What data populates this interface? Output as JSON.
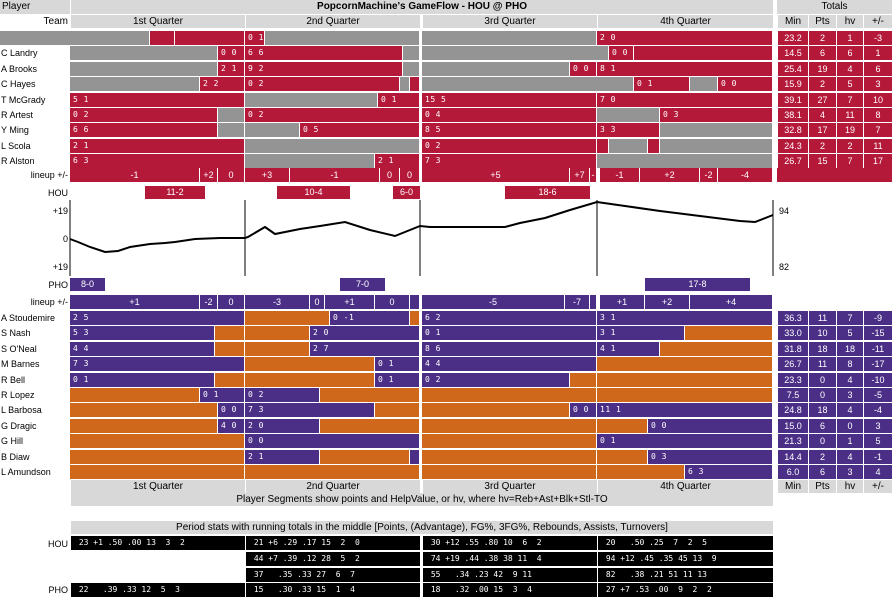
{
  "header": {
    "player_label": "Player",
    "title": "PopcornMachine's GameFlow - HOU @ PHO",
    "totals_label": "Totals",
    "team_label": "Team",
    "quarters": [
      "1st Quarter",
      "2nd Quarter",
      "3rd Quarter",
      "4th Quarter"
    ],
    "cols": [
      "Min",
      "Pts",
      "hv",
      "+/-"
    ]
  },
  "colors": {
    "hou": "#b5193a",
    "pho": "#4b2f86",
    "phoBench": "#d0681b",
    "gray": "#949494",
    "header": "#d8d8d8"
  },
  "hou": {
    "team": "HOU",
    "players": [
      {
        "name": "B Barry",
        "totals": [
          "23.2",
          "2",
          "1",
          "-3"
        ],
        "segs": [
          [
            0,
            150,
            "gray",
            ""
          ],
          [
            150,
            175,
            "hou",
            ""
          ],
          [
            175,
            245,
            "hou",
            ""
          ],
          [
            245,
            265,
            "hou",
            "0 1"
          ],
          [
            265,
            420,
            "gray",
            ""
          ],
          [
            422,
            597,
            "gray",
            ""
          ],
          [
            597,
            773,
            "hou",
            "2 0"
          ]
        ]
      },
      {
        "name": "C Landry",
        "totals": [
          "14.5",
          "6",
          "6",
          "1"
        ],
        "segs": [
          [
            70,
            218,
            "gray",
            ""
          ],
          [
            218,
            245,
            "hou",
            "0 0"
          ],
          [
            245,
            403,
            "hou",
            "6 6"
          ],
          [
            403,
            420,
            "gray",
            ""
          ],
          [
            422,
            609,
            "gray",
            ""
          ],
          [
            609,
            634,
            "hou",
            "0 0"
          ],
          [
            634,
            773,
            "hou",
            ""
          ]
        ]
      },
      {
        "name": "A Brooks",
        "totals": [
          "25.4",
          "19",
          "4",
          "6"
        ],
        "segs": [
          [
            70,
            218,
            "gray",
            ""
          ],
          [
            218,
            245,
            "hou",
            "2 1"
          ],
          [
            245,
            403,
            "hou",
            "9 2"
          ],
          [
            403,
            420,
            "gray",
            ""
          ],
          [
            422,
            570,
            "gray",
            ""
          ],
          [
            570,
            597,
            "hou",
            "0 0"
          ],
          [
            597,
            773,
            "hou",
            "8 1"
          ]
        ]
      },
      {
        "name": "C Hayes",
        "totals": [
          "15.9",
          "2",
          "5",
          "3"
        ],
        "segs": [
          [
            70,
            200,
            "gray",
            ""
          ],
          [
            200,
            245,
            "hou",
            "2 2"
          ],
          [
            245,
            400,
            "hou",
            "0 2"
          ],
          [
            400,
            410,
            "gray",
            ""
          ],
          [
            410,
            420,
            "hou",
            ""
          ],
          [
            422,
            634,
            "gray",
            ""
          ],
          [
            634,
            690,
            "hou",
            "0 1"
          ],
          [
            690,
            718,
            "gray",
            ""
          ],
          [
            718,
            773,
            "hou",
            "0 0"
          ]
        ]
      },
      {
        "name": "T McGrady",
        "totals": [
          "39.1",
          "27",
          "7",
          "10"
        ],
        "segs": [
          [
            70,
            245,
            "hou",
            "5 1"
          ],
          [
            245,
            378,
            "gray",
            ""
          ],
          [
            378,
            420,
            "hou",
            "0 1"
          ],
          [
            422,
            597,
            "hou",
            "15 5"
          ],
          [
            597,
            773,
            "hou",
            "7 0"
          ]
        ]
      },
      {
        "name": "R Artest",
        "totals": [
          "38.1",
          "4",
          "11",
          "8"
        ],
        "segs": [
          [
            70,
            218,
            "hou",
            "0 2"
          ],
          [
            218,
            245,
            "gray",
            ""
          ],
          [
            245,
            420,
            "hou",
            "0 2"
          ],
          [
            422,
            597,
            "hou",
            "0 4"
          ],
          [
            597,
            660,
            "gray",
            ""
          ],
          [
            660,
            773,
            "hou",
            "0 3"
          ]
        ]
      },
      {
        "name": "Y Ming",
        "totals": [
          "32.8",
          "17",
          "19",
          "7"
        ],
        "segs": [
          [
            70,
            218,
            "hou",
            "6 6"
          ],
          [
            218,
            245,
            "gray",
            ""
          ],
          [
            245,
            300,
            "gray",
            ""
          ],
          [
            300,
            420,
            "hou",
            "0 5"
          ],
          [
            422,
            597,
            "hou",
            "8 5"
          ],
          [
            597,
            660,
            "hou",
            "3 3"
          ],
          [
            660,
            773,
            "gray",
            ""
          ]
        ]
      },
      {
        "name": "L Scola",
        "totals": [
          "24.3",
          "2",
          "2",
          "11"
        ],
        "segs": [
          [
            70,
            245,
            "hou",
            "2 1"
          ],
          [
            245,
            420,
            "gray",
            ""
          ],
          [
            422,
            597,
            "hou",
            "0 2"
          ],
          [
            597,
            609,
            "hou",
            ""
          ],
          [
            609,
            648,
            "gray",
            ""
          ],
          [
            648,
            660,
            "hou",
            ""
          ],
          [
            660,
            773,
            "gray",
            ""
          ]
        ]
      },
      {
        "name": "R Alston",
        "totals": [
          "26.7",
          "15",
          "7",
          "17"
        ],
        "segs": [
          [
            70,
            245,
            "hou",
            "6 3"
          ],
          [
            245,
            375,
            "gray",
            ""
          ],
          [
            375,
            420,
            "hou",
            "2 1"
          ],
          [
            422,
            597,
            "hou",
            "7 3"
          ],
          [
            597,
            773,
            "gray",
            ""
          ]
        ]
      }
    ],
    "lineup_label": "lineup +/-",
    "lineup": [
      [
        70,
        200,
        "-1"
      ],
      [
        200,
        218,
        "+2"
      ],
      [
        218,
        245,
        "0"
      ],
      [
        245,
        290,
        "+3"
      ],
      [
        290,
        380,
        "-1"
      ],
      [
        380,
        400,
        "0"
      ],
      [
        400,
        420,
        "0"
      ],
      [
        422,
        570,
        "+5"
      ],
      [
        570,
        590,
        "+7"
      ],
      [
        590,
        597,
        "-"
      ],
      [
        600,
        640,
        "-1"
      ],
      [
        640,
        700,
        "+2"
      ],
      [
        700,
        718,
        "-2"
      ],
      [
        718,
        773,
        "-4"
      ]
    ],
    "periods": [
      [
        145,
        205,
        "11-2"
      ],
      [
        277,
        350,
        "10-4"
      ],
      [
        393,
        420,
        "6-0"
      ],
      [
        505,
        590,
        "18-6"
      ]
    ]
  },
  "flow": {
    "top_label": "+19",
    "mid_label": "0",
    "bot_label": "+19",
    "right_top": "94",
    "right_bottom": "82"
  },
  "pho": {
    "team": "PHO",
    "periods": [
      [
        70,
        105,
        "8-0"
      ],
      [
        340,
        385,
        "7-0"
      ],
      [
        645,
        750,
        "17-8"
      ]
    ],
    "lineup_label": "lineup +/-",
    "lineup": [
      [
        70,
        200,
        "+1"
      ],
      [
        200,
        218,
        "-2"
      ],
      [
        218,
        245,
        "0"
      ],
      [
        245,
        310,
        "-3"
      ],
      [
        310,
        325,
        "0"
      ],
      [
        325,
        375,
        "+1"
      ],
      [
        375,
        410,
        "0"
      ],
      [
        410,
        420,
        ""
      ],
      [
        422,
        565,
        "-5"
      ],
      [
        565,
        590,
        "-7"
      ],
      [
        590,
        597,
        ""
      ],
      [
        600,
        645,
        "+1"
      ],
      [
        645,
        690,
        "+2"
      ],
      [
        690,
        773,
        "+4"
      ]
    ],
    "players": [
      {
        "name": "A Stoudemire",
        "totals": [
          "36.3",
          "11",
          "7",
          "-9"
        ],
        "segs": [
          [
            70,
            245,
            "pho",
            "2 5"
          ],
          [
            245,
            330,
            "phoBench",
            ""
          ],
          [
            330,
            410,
            "pho",
            "0 -1"
          ],
          [
            410,
            420,
            "phoBench",
            ""
          ],
          [
            422,
            597,
            "pho",
            "6 2"
          ],
          [
            597,
            773,
            "pho",
            "3 1"
          ]
        ]
      },
      {
        "name": "S Nash",
        "totals": [
          "33.0",
          "10",
          "5",
          "-15"
        ],
        "segs": [
          [
            70,
            215,
            "pho",
            "5 3"
          ],
          [
            215,
            245,
            "phoBench",
            ""
          ],
          [
            245,
            310,
            "phoBench",
            ""
          ],
          [
            310,
            420,
            "pho",
            "2 0"
          ],
          [
            422,
            597,
            "pho",
            "0 1"
          ],
          [
            597,
            685,
            "pho",
            "3 1"
          ],
          [
            685,
            773,
            "phoBench",
            ""
          ]
        ]
      },
      {
        "name": "S O'Neal",
        "totals": [
          "31.8",
          "18",
          "18",
          "-11"
        ],
        "segs": [
          [
            70,
            215,
            "pho",
            "4 4"
          ],
          [
            215,
            245,
            "phoBench",
            ""
          ],
          [
            245,
            310,
            "phoBench",
            ""
          ],
          [
            310,
            420,
            "pho",
            "2 7"
          ],
          [
            422,
            597,
            "pho",
            "8 6"
          ],
          [
            597,
            660,
            "pho",
            "4 1"
          ],
          [
            660,
            773,
            "phoBench",
            ""
          ]
        ]
      },
      {
        "name": "M Barnes",
        "totals": [
          "26.7",
          "11",
          "8",
          "-17"
        ],
        "segs": [
          [
            70,
            245,
            "pho",
            "7 3"
          ],
          [
            245,
            375,
            "phoBench",
            ""
          ],
          [
            375,
            420,
            "pho",
            "0 1"
          ],
          [
            422,
            597,
            "pho",
            "4 4"
          ],
          [
            597,
            773,
            "phoBench",
            ""
          ]
        ]
      },
      {
        "name": "R Bell",
        "totals": [
          "23.3",
          "0",
          "4",
          "-10"
        ],
        "segs": [
          [
            70,
            215,
            "pho",
            "0 1"
          ],
          [
            215,
            245,
            "phoBench",
            ""
          ],
          [
            245,
            375,
            "phoBench",
            ""
          ],
          [
            375,
            420,
            "pho",
            "0 1"
          ],
          [
            422,
            570,
            "pho",
            "0 2"
          ],
          [
            570,
            597,
            "phoBench",
            ""
          ],
          [
            597,
            773,
            "phoBench",
            ""
          ]
        ]
      },
      {
        "name": "R Lopez",
        "totals": [
          "7.5",
          "0",
          "3",
          "-5"
        ],
        "segs": [
          [
            70,
            200,
            "phoBench",
            ""
          ],
          [
            200,
            245,
            "pho",
            "0 1"
          ],
          [
            245,
            320,
            "pho",
            "0 2"
          ],
          [
            320,
            420,
            "phoBench",
            ""
          ],
          [
            422,
            597,
            "phoBench",
            ""
          ],
          [
            597,
            773,
            "phoBench",
            ""
          ]
        ]
      },
      {
        "name": "L Barbosa",
        "totals": [
          "24.8",
          "18",
          "4",
          "-4"
        ],
        "segs": [
          [
            70,
            218,
            "phoBench",
            ""
          ],
          [
            218,
            245,
            "pho",
            "0 0"
          ],
          [
            245,
            375,
            "pho",
            "7 3"
          ],
          [
            375,
            420,
            "phoBench",
            ""
          ],
          [
            422,
            570,
            "phoBench",
            ""
          ],
          [
            570,
            597,
            "pho",
            "0 0"
          ],
          [
            597,
            773,
            "pho",
            "11 1"
          ]
        ]
      },
      {
        "name": "G Dragic",
        "totals": [
          "15.0",
          "6",
          "0",
          "3"
        ],
        "segs": [
          [
            70,
            218,
            "phoBench",
            ""
          ],
          [
            218,
            245,
            "pho",
            "4 0"
          ],
          [
            245,
            320,
            "pho",
            "2 0"
          ],
          [
            320,
            420,
            "phoBench",
            ""
          ],
          [
            422,
            597,
            "phoBench",
            ""
          ],
          [
            597,
            648,
            "phoBench",
            ""
          ],
          [
            648,
            773,
            "pho",
            "0 0"
          ]
        ]
      },
      {
        "name": "G Hill",
        "totals": [
          "21.3",
          "0",
          "1",
          "5"
        ],
        "segs": [
          [
            70,
            245,
            "phoBench",
            ""
          ],
          [
            245,
            420,
            "pho",
            "0 0"
          ],
          [
            422,
            597,
            "phoBench",
            ""
          ],
          [
            597,
            773,
            "pho",
            "0 1"
          ]
        ]
      },
      {
        "name": "B Diaw",
        "totals": [
          "14.4",
          "2",
          "4",
          "-1"
        ],
        "segs": [
          [
            70,
            245,
            "phoBench",
            ""
          ],
          [
            245,
            320,
            "pho",
            "2 1"
          ],
          [
            320,
            410,
            "phoBench",
            ""
          ],
          [
            410,
            420,
            "pho",
            ""
          ],
          [
            422,
            597,
            "phoBench",
            ""
          ],
          [
            597,
            648,
            "phoBench",
            ""
          ],
          [
            648,
            773,
            "pho",
            "0 3"
          ]
        ]
      },
      {
        "name": "L Amundson",
        "totals": [
          "6.0",
          "6",
          "3",
          "4"
        ],
        "segs": [
          [
            70,
            245,
            "phoBench",
            ""
          ],
          [
            245,
            420,
            "phoBench",
            ""
          ],
          [
            422,
            597,
            "phoBench",
            ""
          ],
          [
            597,
            685,
            "phoBench",
            ""
          ],
          [
            685,
            773,
            "pho",
            "6 3"
          ]
        ]
      }
    ]
  },
  "footer": {
    "quarters": [
      "1st Quarter",
      "2nd Quarter",
      "3rd Quarter",
      "4th Quarter"
    ],
    "cols": [
      "Min",
      "Pts",
      "hv",
      "+/-"
    ],
    "legend": "Player Segments show points and HelpValue, or hv, where hv=Reb+Ast+Blk+Stl-TO"
  },
  "period_stats": {
    "title": "Period stats with running totals in the middle [Points, (Advantage), FG%, 3FG%, Rebounds, Assists, Turnovers]",
    "hou_label": "HOU",
    "pho_label": "PHO",
    "rows": [
      {
        "cells": [
          " 23 +1 .50 .00 13  3  2",
          " 21 +6 .29 .17 15  2  0",
          " 30 +12 .55 .80 10  6  2",
          " 20   .50 .25  7  2  5"
        ]
      },
      {
        "cells": [
          "",
          " 44 +7 .39 .12 28  5  2",
          " 74 +19 .44 .38 38 11  4",
          " 94 +12 .45 .35 45 13  9"
        ]
      },
      {
        "cells": [
          "",
          " 37   .35 .33 27  6  7",
          " 55   .34 .23 42  9 11",
          " 82   .38 .21 51 11 13"
        ]
      },
      {
        "cells": [
          " 22   .39 .33 12  5  3",
          " 15   .30 .33 15  1  4",
          " 18   .32 .00 15  3  4",
          " 27 +7 .53 .00  9  2  2"
        ]
      }
    ]
  }
}
